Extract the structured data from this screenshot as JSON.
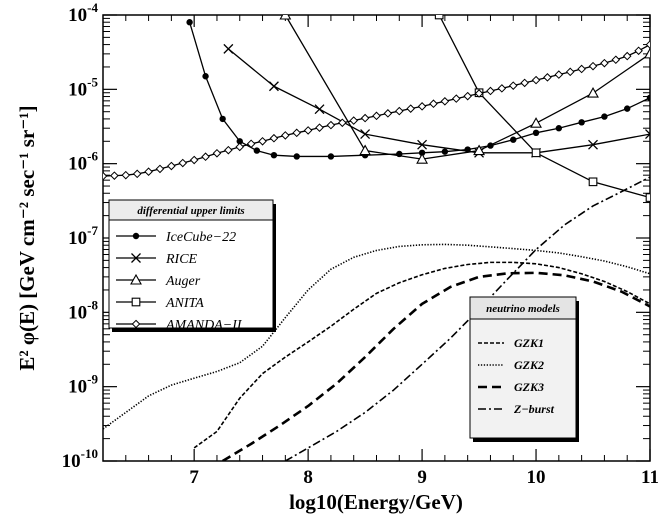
{
  "chart_data": {
    "type": "line",
    "xlabel": "log10(Energy/GeV)",
    "ylabel": "E² φ(E) [GeV cm⁻² sec⁻¹ sr⁻¹]",
    "xlim": [
      6.2,
      11.0
    ],
    "ylim_log10": [
      -10,
      -4
    ],
    "yscale": "log",
    "x_ticks": [
      {
        "value": 7,
        "label": "7"
      },
      {
        "value": 8,
        "label": "8"
      },
      {
        "value": 9,
        "label": "9"
      },
      {
        "value": 10,
        "label": "10"
      },
      {
        "value": 11,
        "label": "11"
      }
    ],
    "y_ticks": [
      {
        "value": -4,
        "label": "-4"
      },
      {
        "value": -5,
        "label": "-5"
      },
      {
        "value": -6,
        "label": "-6"
      },
      {
        "value": -7,
        "label": "-7"
      },
      {
        "value": -8,
        "label": "-8"
      },
      {
        "value": -9,
        "label": "-9"
      },
      {
        "value": -10,
        "label": "-10"
      }
    ],
    "y_tick_base": "10",
    "grid": false,
    "legends": [
      {
        "title": "differential upper limits",
        "placement": "middle-left",
        "entries": [
          "IceCube−22",
          "RICE",
          "Auger",
          "ANITA",
          "AMANDA−II"
        ]
      },
      {
        "title": "neutrino models",
        "placement": "bottom-right",
        "entries": [
          "GZK1",
          "GZK2",
          "GZK3",
          "Z−burst"
        ]
      }
    ],
    "series": [
      {
        "name": "IceCube−22",
        "marker": "filled-circle",
        "style": "solid",
        "x": [
          6.96,
          7.1,
          7.25,
          7.4,
          7.55,
          7.7,
          7.9,
          8.2,
          8.5,
          8.8,
          9.0,
          9.2,
          9.4,
          9.6,
          9.8,
          10.0,
          10.2,
          10.4,
          10.6,
          10.8,
          11.0
        ],
        "y": [
          8e-05,
          1.5e-05,
          4e-06,
          2e-06,
          1.5e-06,
          1.3e-06,
          1.25e-06,
          1.25e-06,
          1.3e-06,
          1.35e-06,
          1.4e-06,
          1.45e-06,
          1.55e-06,
          1.75e-06,
          2.1e-06,
          2.6e-06,
          3e-06,
          3.6e-06,
          4.3e-06,
          5.5e-06,
          7.7e-06
        ]
      },
      {
        "name": "RICE",
        "marker": "x",
        "style": "solid",
        "x": [
          7.3,
          7.7,
          8.1,
          8.5,
          9.0,
          9.5,
          10.0,
          10.5,
          11.0
        ],
        "y": [
          3.5e-05,
          1.1e-05,
          5.4e-06,
          2.5e-06,
          1.8e-06,
          1.4e-06,
          1.4e-06,
          1.8e-06,
          2.5e-06
        ]
      },
      {
        "name": "Auger",
        "marker": "open-triangle",
        "style": "solid",
        "x": [
          7.8,
          8.5,
          9.0,
          9.5,
          10.0,
          10.5,
          11.0
        ],
        "y": [
          0.0001,
          1.5e-06,
          1.15e-06,
          1.5e-06,
          3.5e-06,
          8.9e-06,
          3e-05
        ]
      },
      {
        "name": "ANITA",
        "marker": "open-square",
        "style": "solid",
        "x": [
          9.15,
          9.5,
          10.0,
          10.5,
          11.0
        ],
        "y": [
          0.0001,
          9e-06,
          1.4e-06,
          5.7e-07,
          3.5e-07
        ]
      },
      {
        "name": "AMANDA−II",
        "marker": "open-diamond",
        "style": "solid",
        "x": [
          6.2,
          6.3,
          6.4,
          6.5,
          6.6,
          6.7,
          6.8,
          6.9,
          7.0,
          7.1,
          7.2,
          7.3,
          7.4,
          7.5,
          7.6,
          7.7,
          7.8,
          7.9,
          8.0,
          8.1,
          8.2,
          8.3,
          8.4,
          8.5,
          8.6,
          8.7,
          8.8,
          8.9,
          9.0,
          9.1,
          9.2,
          9.3,
          9.4,
          9.5,
          9.6,
          9.7,
          9.8,
          9.9,
          10.0,
          10.1,
          10.2,
          10.3,
          10.4,
          10.5,
          10.6,
          10.7,
          10.8,
          10.9,
          11.0
        ],
        "y": [
          6.8e-07,
          6.9e-07,
          7e-07,
          7.3e-07,
          7.8e-07,
          8.5e-07,
          9.3e-07,
          1.02e-06,
          1.12e-06,
          1.24e-06,
          1.38e-06,
          1.52e-06,
          1.68e-06,
          1.85e-06,
          2e-06,
          2.2e-06,
          2.4e-06,
          2.6e-06,
          2.8e-06,
          3.05e-06,
          3.3e-06,
          3.55e-06,
          3.8e-06,
          4.1e-06,
          4.4e-06,
          4.75e-06,
          5.1e-06,
          5.5e-06,
          5.9e-06,
          6.4e-06,
          6.9e-06,
          7.5e-06,
          8.1e-06,
          8.8e-06,
          9.5e-06,
          1.03e-05,
          1.12e-05,
          1.22e-05,
          1.33e-05,
          1.45e-05,
          1.58e-05,
          1.72e-05,
          1.88e-05,
          2.05e-05,
          2.25e-05,
          2.5e-05,
          2.8e-05,
          3.3e-05,
          4e-05
        ]
      },
      {
        "name": "GZK1",
        "marker": "none",
        "style": "dashed-fine",
        "x": [
          7.0,
          7.2,
          7.4,
          7.6,
          7.8,
          8.0,
          8.2,
          8.4,
          8.6,
          8.8,
          9.0,
          9.2,
          9.4,
          9.6,
          9.8,
          10.0,
          10.2,
          10.4,
          10.6,
          10.8,
          11.0
        ],
        "y": [
          1.5e-10,
          2.5e-10,
          7e-10,
          1.5e-09,
          2.5e-09,
          4e-09,
          6.5e-09,
          1.1e-08,
          1.8e-08,
          2.5e-08,
          3.2e-08,
          3.9e-08,
          4.4e-08,
          4.7e-08,
          4.7e-08,
          4.5e-08,
          4e-08,
          3.3e-08,
          2.6e-08,
          1.9e-08,
          1.3e-08
        ]
      },
      {
        "name": "GZK2",
        "marker": "none",
        "style": "dotted",
        "x": [
          6.2,
          6.4,
          6.6,
          6.8,
          7.0,
          7.2,
          7.4,
          7.6,
          7.8,
          8.0,
          8.2,
          8.4,
          8.6,
          8.8,
          9.0,
          9.2,
          9.4,
          9.6,
          9.8,
          10.0,
          10.2,
          10.4,
          10.6,
          10.8,
          11.0
        ],
        "y": [
          2.7e-10,
          4.5e-10,
          7.5e-10,
          1.05e-09,
          1.3e-09,
          1.6e-09,
          2.1e-09,
          3.5e-09,
          8.5e-09,
          2e-08,
          3.8e-08,
          5.5e-08,
          6.8e-08,
          7.7e-08,
          8.1e-08,
          8.2e-08,
          8e-08,
          7.6e-08,
          7.2e-08,
          6.8e-08,
          6.3e-08,
          5.6e-08,
          4.9e-08,
          4.1e-08,
          3.3e-08
        ]
      },
      {
        "name": "GZK3",
        "marker": "none",
        "style": "dashed",
        "x": [
          7.25,
          7.5,
          7.75,
          8.0,
          8.25,
          8.5,
          8.75,
          9.0,
          9.25,
          9.5,
          9.75,
          10.0,
          10.25,
          10.5,
          10.75,
          11.0
        ],
        "y": [
          1e-10,
          1.7e-10,
          3e-10,
          5.5e-10,
          1.1e-09,
          2.5e-09,
          6e-09,
          1.3e-08,
          2.2e-08,
          3e-08,
          3.35e-08,
          3.4e-08,
          3.15e-08,
          2.6e-08,
          1.9e-08,
          1.2e-08
        ]
      },
      {
        "name": "Z−burst",
        "marker": "none",
        "style": "dash-dot",
        "x": [
          7.8,
          8.0,
          8.25,
          8.5,
          8.75,
          9.0,
          9.25,
          9.5,
          9.75,
          10.0,
          10.25,
          10.5,
          10.75,
          11.0
        ],
        "y": [
          1e-10,
          1.5e-10,
          2.5e-10,
          4.5e-10,
          9e-10,
          2e-09,
          4.5e-09,
          1.1e-08,
          2.8e-08,
          7e-08,
          1.5e-07,
          2.7e-07,
          4.2e-07,
          6.6e-07
        ]
      }
    ]
  }
}
